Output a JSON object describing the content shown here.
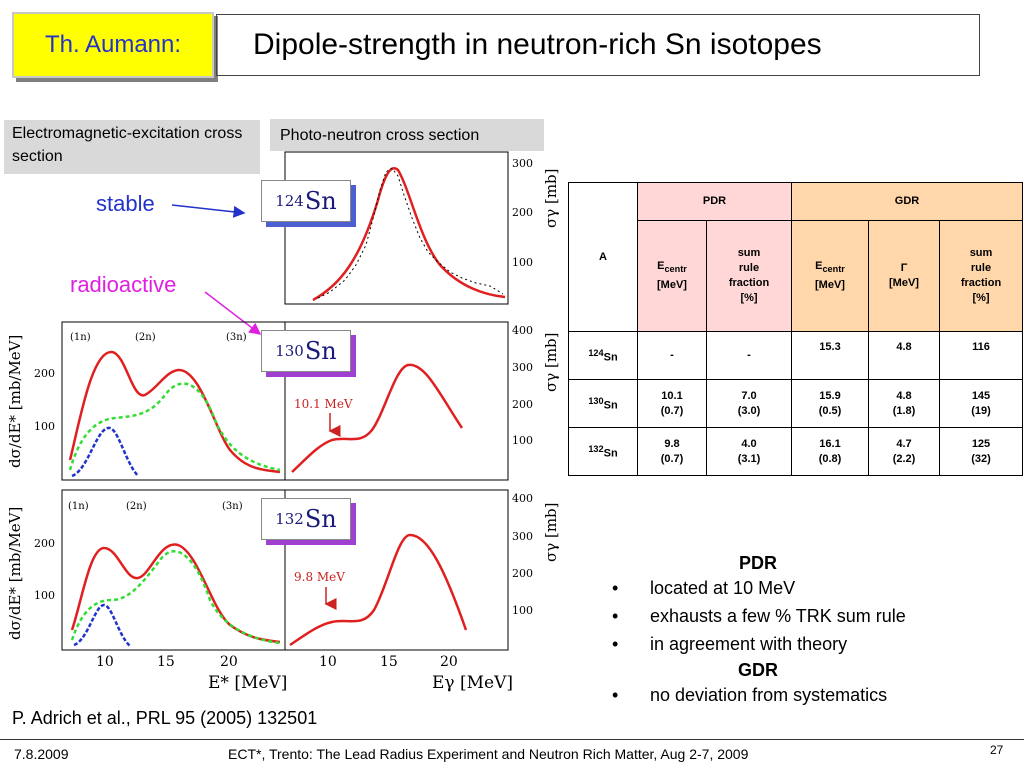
{
  "header": {
    "author": "Th. Aumann:",
    "title": "Dipole-strength in neutron-rich Sn isotopes"
  },
  "labels": {
    "em_excitation": "Electromagnetic-excitation cross section",
    "photo_neutron": "Photo-neutron cross section",
    "stable": "stable",
    "radioactive": "radioactive"
  },
  "isotopes": [
    {
      "mass": "124",
      "element": "Sn"
    },
    {
      "mass": "130",
      "element": "Sn"
    },
    {
      "mass": "132",
      "element": "Sn"
    }
  ],
  "figure": {
    "pdr_marker_130": "10.1 MeV",
    "pdr_marker_132": "9.8 MeV",
    "ylabel_left": "dσ/dE* [mb/MeV]",
    "ylabel_right": "σγ [mb]",
    "xlabel_left": "E* [MeV]",
    "xlabel_right": "Eγ [MeV]",
    "neutron_thresholds": [
      "(1n)",
      "(2n)",
      "(3n)"
    ],
    "left_yticks": [
      "200",
      "100"
    ],
    "right_yticks": [
      "400",
      "300",
      "200",
      "100"
    ],
    "top_yticks": [
      "300",
      "200",
      "100"
    ],
    "xticks_left": [
      "10",
      "15",
      "20"
    ],
    "xticks_right": [
      "10",
      "15",
      "20"
    ]
  },
  "table": {
    "col_A": "A",
    "group_pdr": "PDR",
    "group_gdr": "GDR",
    "h_ecentr_pdr": {
      "main": "E",
      "sub": "centr",
      "unit": "[MeV]"
    },
    "h_sum_pdr": [
      "sum",
      "rule",
      "fraction",
      "[%]"
    ],
    "h_ecentr_gdr": {
      "main": "E",
      "sub": "centr",
      "unit": "[MeV]"
    },
    "h_gamma": [
      "Γ",
      "[MeV]"
    ],
    "h_sum_gdr": [
      "sum",
      "rule",
      "fraction",
      "[%]"
    ],
    "rows": [
      {
        "mass": "124",
        "el": "Sn",
        "pdr_e": "-",
        "pdr_e_err": "",
        "pdr_s": "-",
        "pdr_s_err": "",
        "gdr_e": "15.3",
        "gdr_e_err": "",
        "gdr_g": "4.8",
        "gdr_g_err": "",
        "gdr_s": "116",
        "gdr_s_err": ""
      },
      {
        "mass": "130",
        "el": "Sn",
        "pdr_e": "10.1",
        "pdr_e_err": "(0.7)",
        "pdr_s": "7.0",
        "pdr_s_err": "(3.0)",
        "gdr_e": "15.9",
        "gdr_e_err": "(0.5)",
        "gdr_g": "4.8",
        "gdr_g_err": "(1.8)",
        "gdr_s": "145",
        "gdr_s_err": "(19)"
      },
      {
        "mass": "132",
        "el": "Sn",
        "pdr_e": "9.8",
        "pdr_e_err": "(0.7)",
        "pdr_s": "4.0",
        "pdr_s_err": "(3.1)",
        "gdr_e": "16.1",
        "gdr_e_err": "(0.8)",
        "gdr_g": "4.7",
        "gdr_g_err": "(2.2)",
        "gdr_s": "125",
        "gdr_s_err": "(32)"
      }
    ]
  },
  "summary": {
    "pdr_head": "PDR",
    "pdr_items": [
      "located at 10 MeV",
      "exhausts a few % TRK sum rule",
      "in agreement with theory"
    ],
    "gdr_head": "GDR",
    "gdr_items": [
      "no deviation from systematics"
    ]
  },
  "citation": "P. Adrich et al., PRL 95 (2005) 132501",
  "footer": {
    "date": "7.8.2009",
    "event": "ECT*, Trento: The Lead Radius Experiment and Neutron Rich Matter, Aug 2-7, 2009",
    "page": "27"
  }
}
